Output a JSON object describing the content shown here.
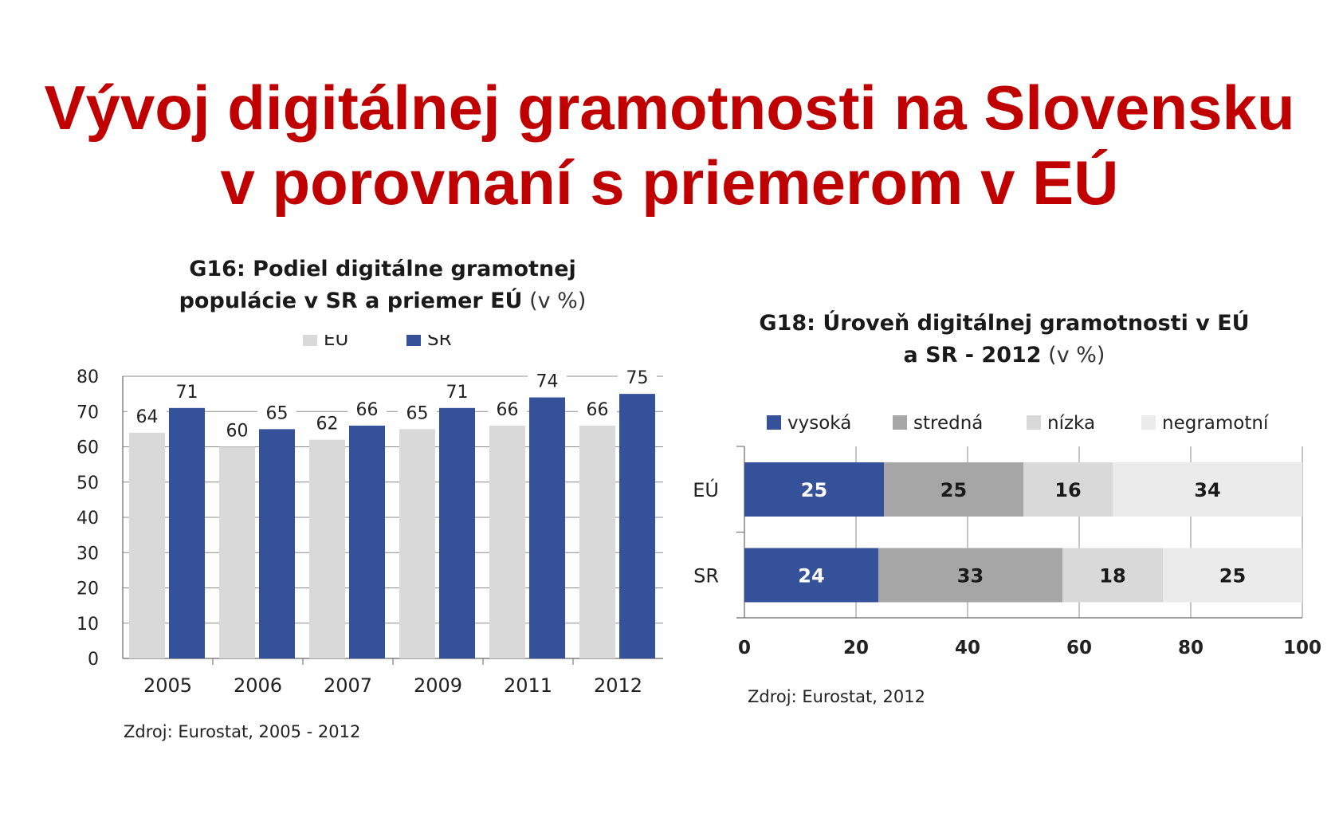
{
  "title": {
    "line1": "Vývoj digitálnej gramotnosti na Slovensku",
    "line2": "v porovnaní s priemerom v EÚ"
  },
  "chart_data": [
    {
      "type": "bar",
      "title": "G16: Podiel digitálne gramotnej populácie v SR a priemer EÚ (v %)",
      "title_line1": "G16: Podiel digitálne gramotnej",
      "title_line2_bold": "populácie v SR a priemer EÚ",
      "title_line2_unit": "(v %)",
      "categories": [
        "2005",
        "2006",
        "2007",
        "2009",
        "2011",
        "2012"
      ],
      "series": [
        {
          "name": "EÚ",
          "values": [
            64,
            60,
            62,
            65,
            66,
            66
          ],
          "color": "#d9d9d9"
        },
        {
          "name": "SR",
          "values": [
            71,
            65,
            66,
            71,
            74,
            75
          ],
          "color": "#34519a"
        }
      ],
      "yticks": [
        "0",
        "10",
        "20",
        "30",
        "40",
        "50",
        "60",
        "70",
        "80"
      ],
      "ylim": [
        0,
        80
      ],
      "grid": true,
      "legend": "top",
      "source": "Zdroj: Eurostat, 2005 - 2012"
    },
    {
      "type": "bar",
      "orientation": "horizontal",
      "stacked": true,
      "title": "G18: Úroveň digitálnej gramotnosti v EÚ a SR - 2012 (v %)",
      "title_line1": "G18: Úroveň digitálnej gramotnosti v EÚ",
      "title_line2_bold": "a SR - 2012",
      "title_line2_unit": "(v %)",
      "categories": [
        "EÚ",
        "SR"
      ],
      "series": [
        {
          "name": "vysoká",
          "values": [
            25,
            24
          ],
          "color": "#34519a",
          "label_color": "#ffffff"
        },
        {
          "name": "stredná",
          "values": [
            25,
            33
          ],
          "color": "#a6a6a6",
          "label_color": "#1a1a1a"
        },
        {
          "name": "nízka",
          "values": [
            16,
            18
          ],
          "color": "#d9d9d9",
          "label_color": "#1a1a1a"
        },
        {
          "name": "negramotní",
          "values": [
            34,
            25
          ],
          "color": "#ebebeb",
          "label_color": "#1a1a1a"
        }
      ],
      "xticks": [
        "0",
        "20",
        "40",
        "60",
        "80",
        "100"
      ],
      "xlim": [
        0,
        100
      ],
      "grid": true,
      "legend": "top",
      "source": "Zdroj: Eurostat, 2012"
    }
  ]
}
